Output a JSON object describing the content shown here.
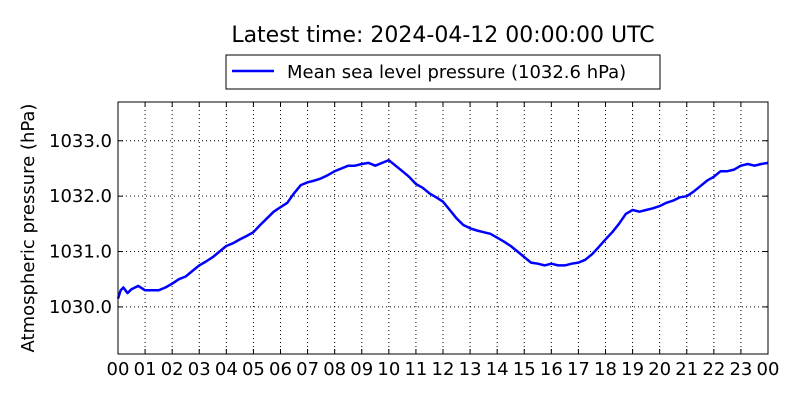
{
  "chart_data": {
    "type": "line",
    "title": "Latest time: 2024-04-12 00:00:00 UTC",
    "xlabel": "",
    "ylabel": "Atmospheric pressure (hPa)",
    "xlim": [
      0,
      24
    ],
    "ylim": [
      1029.15,
      1033.7
    ],
    "x_ticks": [
      {
        "value": 0,
        "label": "00"
      },
      {
        "value": 1,
        "label": "01"
      },
      {
        "value": 2,
        "label": "02"
      },
      {
        "value": 3,
        "label": "03"
      },
      {
        "value": 4,
        "label": "04"
      },
      {
        "value": 5,
        "label": "05"
      },
      {
        "value": 6,
        "label": "06"
      },
      {
        "value": 7,
        "label": "07"
      },
      {
        "value": 8,
        "label": "08"
      },
      {
        "value": 9,
        "label": "09"
      },
      {
        "value": 10,
        "label": "10"
      },
      {
        "value": 11,
        "label": "11"
      },
      {
        "value": 12,
        "label": "12"
      },
      {
        "value": 13,
        "label": "13"
      },
      {
        "value": 14,
        "label": "14"
      },
      {
        "value": 15,
        "label": "15"
      },
      {
        "value": 16,
        "label": "16"
      },
      {
        "value": 17,
        "label": "17"
      },
      {
        "value": 18,
        "label": "18"
      },
      {
        "value": 19,
        "label": "19"
      },
      {
        "value": 20,
        "label": "20"
      },
      {
        "value": 21,
        "label": "21"
      },
      {
        "value": 22,
        "label": "22"
      },
      {
        "value": 23,
        "label": "23"
      },
      {
        "value": 24,
        "label": "00"
      }
    ],
    "y_ticks": [
      {
        "value": 1030.0,
        "label": "1030.0"
      },
      {
        "value": 1031.0,
        "label": "1031.0"
      },
      {
        "value": 1032.0,
        "label": "1032.0"
      },
      {
        "value": 1033.0,
        "label": "1033.0"
      }
    ],
    "grid": true,
    "legend_position": "top-center",
    "series": [
      {
        "name": "Mean sea level pressure (1032.6 hPa)",
        "color": "#0000ff",
        "x": [
          0,
          0.1,
          0.2,
          0.35,
          0.5,
          0.75,
          1.0,
          1.25,
          1.5,
          1.75,
          2.0,
          2.25,
          2.5,
          2.75,
          3.0,
          3.25,
          3.5,
          3.75,
          4.0,
          4.25,
          4.5,
          4.75,
          5.0,
          5.25,
          5.5,
          5.75,
          6.0,
          6.25,
          6.5,
          6.75,
          7.0,
          7.25,
          7.5,
          7.75,
          8.0,
          8.25,
          8.5,
          8.75,
          9.0,
          9.25,
          9.5,
          9.75,
          10.0,
          10.25,
          10.5,
          10.75,
          11.0,
          11.25,
          11.5,
          11.75,
          12.0,
          12.25,
          12.5,
          12.75,
          13.0,
          13.25,
          13.5,
          13.75,
          14.0,
          14.25,
          14.5,
          14.75,
          15.0,
          15.25,
          15.5,
          15.75,
          16.0,
          16.25,
          16.5,
          16.75,
          17.0,
          17.25,
          17.5,
          17.75,
          18.0,
          18.25,
          18.5,
          18.75,
          19.0,
          19.25,
          19.5,
          19.75,
          20.0,
          20.25,
          20.5,
          20.75,
          21.0,
          21.25,
          21.5,
          21.75,
          22.0,
          22.25,
          22.5,
          22.75,
          23.0,
          23.25,
          23.5,
          23.75,
          24.0
        ],
        "y": [
          1030.15,
          1030.3,
          1030.35,
          1030.25,
          1030.32,
          1030.38,
          1030.3,
          1030.3,
          1030.3,
          1030.35,
          1030.42,
          1030.5,
          1030.55,
          1030.65,
          1030.75,
          1030.82,
          1030.9,
          1031.0,
          1031.1,
          1031.15,
          1031.22,
          1031.28,
          1031.35,
          1031.48,
          1031.6,
          1031.72,
          1031.8,
          1031.88,
          1032.05,
          1032.2,
          1032.25,
          1032.28,
          1032.32,
          1032.38,
          1032.45,
          1032.5,
          1032.55,
          1032.55,
          1032.58,
          1032.6,
          1032.55,
          1032.6,
          1032.65,
          1032.55,
          1032.45,
          1032.35,
          1032.22,
          1032.15,
          1032.05,
          1031.98,
          1031.9,
          1031.75,
          1031.6,
          1031.48,
          1031.42,
          1031.38,
          1031.35,
          1031.32,
          1031.25,
          1031.18,
          1031.1,
          1031.0,
          1030.9,
          1030.8,
          1030.78,
          1030.75,
          1030.78,
          1030.75,
          1030.75,
          1030.78,
          1030.8,
          1030.85,
          1030.95,
          1031.08,
          1031.22,
          1031.35,
          1031.5,
          1031.68,
          1031.75,
          1031.72,
          1031.75,
          1031.78,
          1031.82,
          1031.88,
          1031.92,
          1031.98,
          1032.0,
          1032.08,
          1032.18,
          1032.28,
          1032.35,
          1032.45,
          1032.45,
          1032.48,
          1032.55,
          1032.58,
          1032.55,
          1032.58,
          1032.6
        ]
      }
    ]
  }
}
